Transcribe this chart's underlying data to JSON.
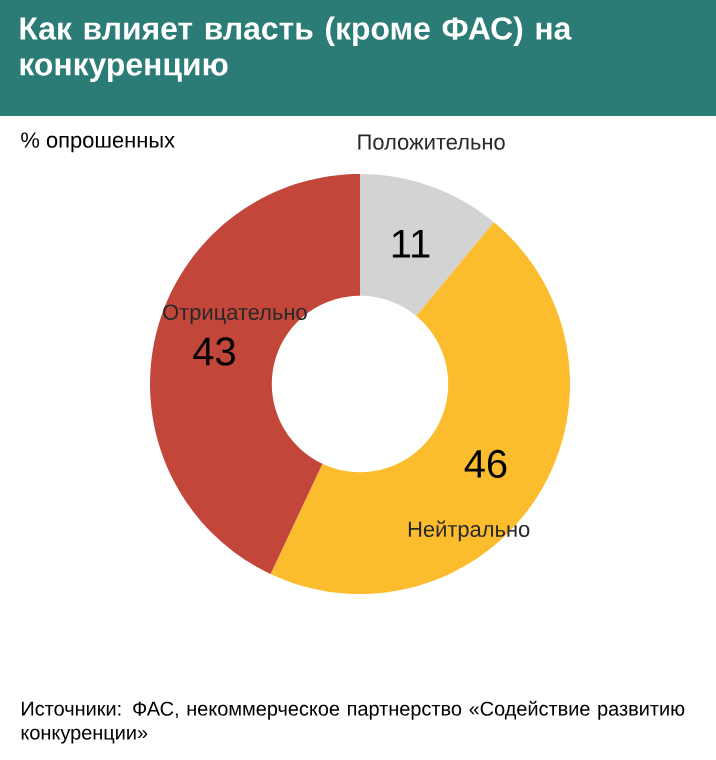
{
  "chart_data": {
    "type": "donut",
    "title": "Как влияет власть (кроме ФАС) на конкуренцию",
    "subtitle": "% опрошенных",
    "categories": [
      "Положительно",
      "Нейтрально",
      "Отрицательно"
    ],
    "values": [
      11,
      46,
      43
    ],
    "colors": [
      "#d3d3d3",
      "#fbbc2e",
      "#c2463a"
    ],
    "data_labels": true,
    "annotations": [
      "Источники: ФАС, некоммерческое партнерство «Содействие развитию конкуренции»"
    ]
  }
}
